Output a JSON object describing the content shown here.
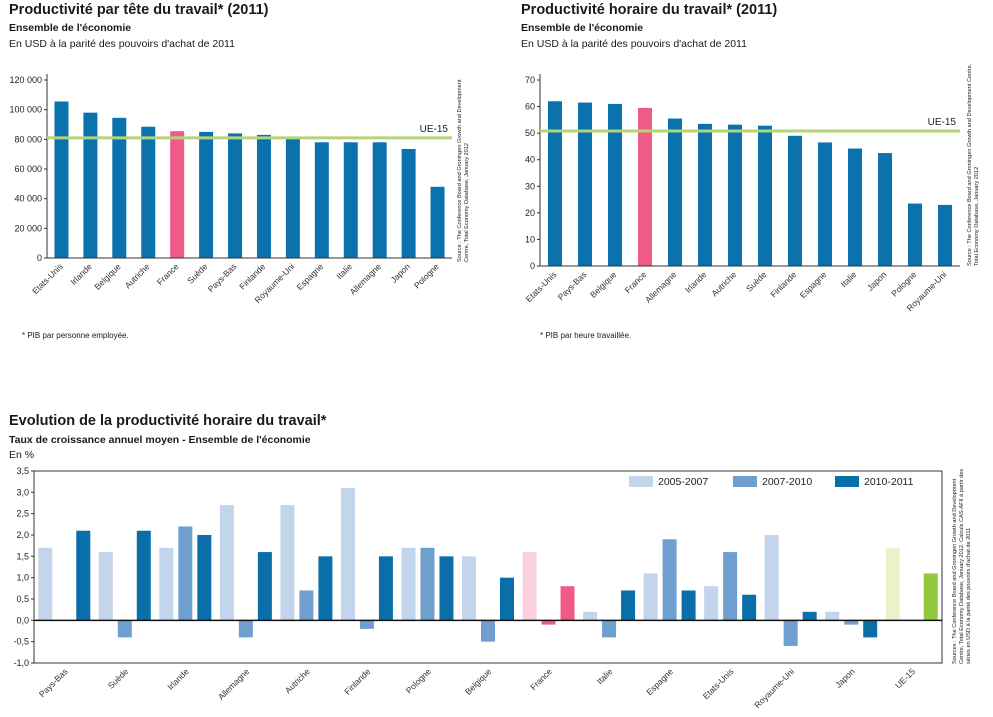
{
  "charts": [
    {
      "title": "Productivité par tête du travail* (2011)",
      "subtitle": "Ensemble de l'économie",
      "unit": "En USD à la parité des pouvoirs d'achat de 2011",
      "footnote": "* PIB par personne employée.",
      "source": "Source : The Conference Board and Groningen Growth and Development Centre, Total Economy Database, January 2012"
    },
    {
      "title": "Productivité horaire du travail* (2011)",
      "subtitle": "Ensemble de l'économie",
      "unit": "En USD à la parité des pouvoirs d'achat de 2011",
      "footnote": "* PIB par heure travaillée.",
      "source": "Source : The Conference Board and Groningen Growth and Development Centre, Total Economy Database, January 2012"
    },
    {
      "title": "Evolution de la productivité horaire du travail*",
      "subtitle": "Taux de croissance annuel moyen - Ensemble de l'économie",
      "unit": "En %",
      "source": "Sources : The Conference Board and Groningen Growth and Development Centre, Total Economy Database, January 2012. Calculs CAS-AFII à partir des séries en USD à la parité des pouvoirs d'achat de 2011"
    }
  ],
  "colors": {
    "bar": "#0a73ad",
    "france": "#f05a87",
    "ue_line": "#b6d37a",
    "axis": "#333333",
    "grid_dark": "#555555",
    "light": "#c3d5ea",
    "medium": "#6f9fcf",
    "dark": "#0a6fa9",
    "france_light": "#fcd2de",
    "france_medium": "#f05a87",
    "ue_light": "#e9f3c9",
    "ue_dark": "#93c83f"
  },
  "chart_data": [
    {
      "type": "bar",
      "categories": [
        "Etats-Unis",
        "Irlande",
        "Belgique",
        "Autriche",
        "France",
        "Suède",
        "Pays-Bas",
        "Finlande",
        "Royaume-Uni",
        "Espagne",
        "Italie",
        "Allemagne",
        "Japon",
        "Pologne"
      ],
      "values": [
        105500,
        98000,
        94500,
        88500,
        85500,
        85000,
        84000,
        83000,
        81500,
        78000,
        78000,
        78000,
        73500,
        48000
      ],
      "highlight": "France",
      "reference_line": {
        "label": "UE-15",
        "value": 81000
      },
      "ylim": [
        0,
        120000
      ],
      "yticks": [
        0,
        20000,
        40000,
        60000,
        80000,
        100000,
        120000
      ],
      "ytick_labels": [
        "0",
        "20 000",
        "40 000",
        "60 000",
        "80 000",
        "100 000",
        "120 000"
      ],
      "title": "Productivité par tête du travail* (2011)"
    },
    {
      "type": "bar",
      "categories": [
        "Etats-Unis",
        "Pays-Bas",
        "Belgique",
        "France",
        "Allemagne",
        "Irlande",
        "Autriche",
        "Suède",
        "Finlande",
        "Espagne",
        "Italie",
        "Japon",
        "Pologne",
        "Royaume-Uni"
      ],
      "values": [
        62,
        61.5,
        61,
        59.5,
        55.5,
        53.5,
        53.2,
        52.8,
        49,
        46.5,
        44.2,
        42.5,
        23.5,
        23
      ],
      "highlight": "France",
      "reference_line": {
        "label": "UE-15",
        "value": 50.8
      },
      "ylim": [
        0,
        70
      ],
      "yticks": [
        0,
        10,
        20,
        30,
        40,
        50,
        60,
        70
      ],
      "ytick_labels": [
        "0",
        "10",
        "20",
        "30",
        "40",
        "50",
        "60",
        "70"
      ],
      "title": "Productivité horaire du travail* (2011)"
    },
    {
      "type": "bar",
      "categories": [
        "Pays-Bas",
        "Suède",
        "Irlande",
        "Allemagne",
        "Autriche",
        "Finlande",
        "Pologne",
        "Belgique",
        "France",
        "Italie",
        "Espagne",
        "Etats-Unis",
        "Royaume-Uni",
        "Japon",
        "UE-15"
      ],
      "series": [
        {
          "name": "2005-2007",
          "values": [
            1.7,
            1.6,
            1.7,
            2.7,
            2.7,
            3.1,
            1.7,
            1.5,
            1.6,
            0.2,
            1.1,
            0.8,
            2.0,
            0.2,
            1.7
          ]
        },
        {
          "name": "2007-2010",
          "values": [
            0.0,
            -0.4,
            2.2,
            -0.4,
            0.7,
            -0.2,
            1.7,
            -0.5,
            -0.1,
            -0.4,
            1.9,
            1.6,
            -0.6,
            -0.1,
            0.0
          ]
        },
        {
          "name": "2010-2011",
          "values": [
            2.1,
            2.1,
            2.0,
            1.6,
            1.5,
            1.5,
            1.5,
            1.0,
            0.8,
            0.7,
            0.7,
            0.6,
            0.2,
            -0.4,
            1.1
          ]
        }
      ],
      "ylim": [
        -1.0,
        3.5
      ],
      "yticks": [
        -1.0,
        -0.5,
        0.0,
        0.5,
        1.0,
        1.5,
        2.0,
        2.5,
        3.0,
        3.5
      ],
      "ytick_labels": [
        "-1,0",
        "-0,5",
        "0,0",
        "0,5",
        "1,0",
        "1,5",
        "2,0",
        "2,5",
        "3,0",
        "3,5"
      ],
      "legend": "top-right",
      "title": "Evolution de la productivité horaire du travail*"
    }
  ]
}
